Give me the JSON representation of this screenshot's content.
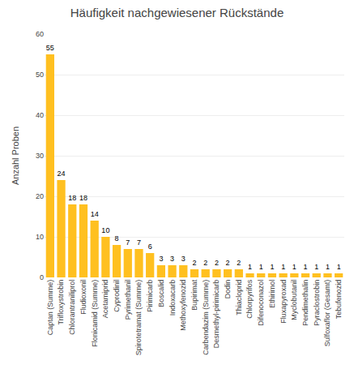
{
  "chart_data": {
    "type": "bar",
    "title": "Häufigkeit nachgewiesener Rückstände",
    "ylabel": "Anzahl Proben",
    "categories": [
      "Captan (Summe)",
      "Trifloxystrobin",
      "Chlorantraniliprol",
      "Fludioxonil",
      "Flonicamid (Summe)",
      "Acetamiprid",
      "Cyprodinil",
      "Pyrimethanil",
      "Spirotetramat (Summe)",
      "Pirimicarb",
      "Boscalid",
      "Indoxacarb",
      "Methoxyfenozid",
      "Bupirimat",
      "Carbendazim (Summe)",
      "Desmethyl-pirimicarb",
      "Dodin",
      "Thiacloprid",
      "Chlorpyrifos",
      "Difenoconazol",
      "Ethirimol",
      "Fluxapyroxad",
      "Myclobutanil",
      "Pendimethalin",
      "Pyraclostrobin",
      "Sulfoxaflor (Gesamt)",
      "Tebufenozid"
    ],
    "values": [
      55,
      24,
      18,
      18,
      14,
      10,
      8,
      7,
      7,
      6,
      3,
      3,
      3,
      2,
      2,
      2,
      2,
      2,
      1,
      1,
      1,
      1,
      1,
      1,
      1,
      1,
      1
    ],
    "color": "#FFC020",
    "ylim": [
      0,
      60
    ],
    "yticks": [
      0,
      10,
      20,
      30,
      40,
      50,
      60
    ],
    "grid": true,
    "data_labels": true
  }
}
